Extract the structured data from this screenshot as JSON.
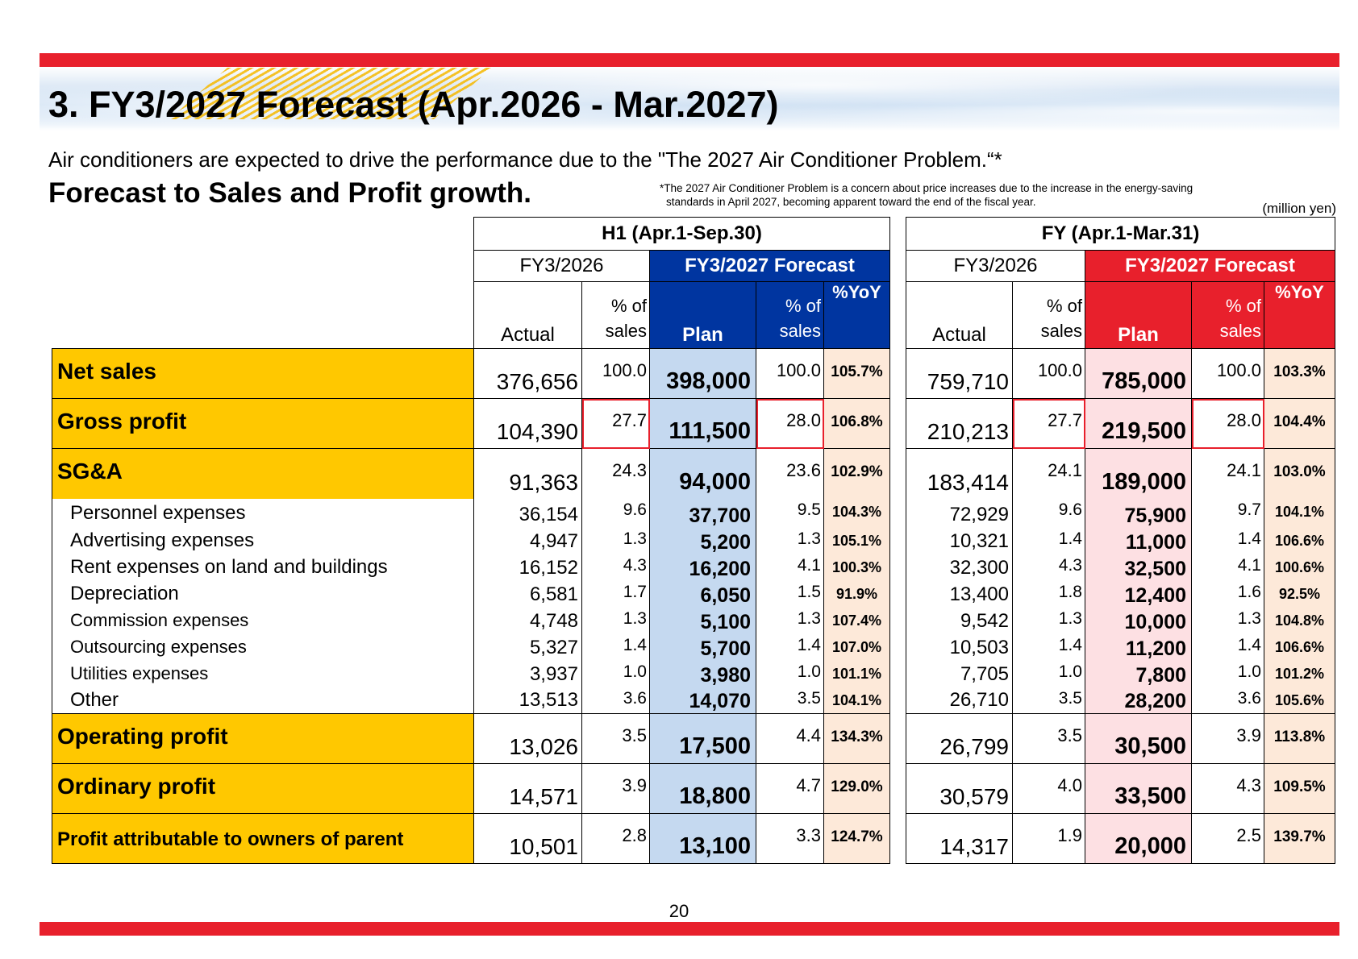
{
  "header": {
    "title": "3. FY3/2027 Forecast (Apr.2026 - Mar.2027)",
    "subtitle": "Air conditioners are expected to drive the performance due to the \"The 2027 Air Conditioner Problem.“*",
    "headline": "Forecast to Sales and Profit growth.",
    "footnote_line1": "*The 2027 Air Conditioner Problem is a concern about price increases due to the increase in the energy-saving",
    "footnote_line2": "standards in April 2027, becoming apparent toward the end of the fiscal year.",
    "unit": "(million yen)"
  },
  "table": {
    "h1_title": "H1 (Apr.1-Sep.30)",
    "fy_title": "FY (Apr.1-Mar.31)",
    "prior_year": "FY3/2026",
    "forecast_label": "FY3/2027 Forecast",
    "col_actual": "Actual",
    "col_pct_line1": "% of",
    "col_pct_line2": "sales",
    "col_plan": "Plan",
    "col_yoy": "%YoY",
    "rows": [
      {
        "label": "Net sales",
        "h1_actual": "376,656",
        "h1_actual_pct": "100.0",
        "h1_plan": "398,000",
        "h1_plan_pct": "100.0",
        "h1_yoy": "105.7%",
        "fy_actual": "759,710",
        "fy_actual_pct": "100.0",
        "fy_plan": "785,000",
        "fy_plan_pct": "100.0",
        "fy_yoy": "103.3%"
      },
      {
        "label": "Gross profit",
        "h1_actual": "104,390",
        "h1_actual_pct": "27.7",
        "h1_plan": "111,500",
        "h1_plan_pct": "28.0",
        "h1_yoy": "106.8%",
        "fy_actual": "210,213",
        "fy_actual_pct": "27.7",
        "fy_plan": "219,500",
        "fy_plan_pct": "28.0",
        "fy_yoy": "104.4%"
      },
      {
        "label": "SG&A",
        "h1_actual": "91,363",
        "h1_actual_pct": "24.3",
        "h1_plan": "94,000",
        "h1_plan_pct": "23.6",
        "h1_yoy": "102.9%",
        "fy_actual": "183,414",
        "fy_actual_pct": "24.1",
        "fy_plan": "189,000",
        "fy_plan_pct": "24.1",
        "fy_yoy": "103.0%"
      },
      {
        "label": "Personnel expenses",
        "h1_actual": "36,154",
        "h1_actual_pct": "9.6",
        "h1_plan": "37,700",
        "h1_plan_pct": "9.5",
        "h1_yoy": "104.3%",
        "fy_actual": "72,929",
        "fy_actual_pct": "9.6",
        "fy_plan": "75,900",
        "fy_plan_pct": "9.7",
        "fy_yoy": "104.1%"
      },
      {
        "label": "Advertising expenses",
        "h1_actual": "4,947",
        "h1_actual_pct": "1.3",
        "h1_plan": "5,200",
        "h1_plan_pct": "1.3",
        "h1_yoy": "105.1%",
        "fy_actual": "10,321",
        "fy_actual_pct": "1.4",
        "fy_plan": "11,000",
        "fy_plan_pct": "1.4",
        "fy_yoy": "106.6%"
      },
      {
        "label": "Rent expenses on land and buildings",
        "h1_actual": "16,152",
        "h1_actual_pct": "4.3",
        "h1_plan": "16,200",
        "h1_plan_pct": "4.1",
        "h1_yoy": "100.3%",
        "fy_actual": "32,300",
        "fy_actual_pct": "4.3",
        "fy_plan": "32,500",
        "fy_plan_pct": "4.1",
        "fy_yoy": "100.6%"
      },
      {
        "label": "Depreciation",
        "h1_actual": "6,581",
        "h1_actual_pct": "1.7",
        "h1_plan": "6,050",
        "h1_plan_pct": "1.5",
        "h1_yoy": "91.9%",
        "fy_actual": "13,400",
        "fy_actual_pct": "1.8",
        "fy_plan": "12,400",
        "fy_plan_pct": "1.6",
        "fy_yoy": "92.5%"
      },
      {
        "label": "Commission expenses",
        "h1_actual": "4,748",
        "h1_actual_pct": "1.3",
        "h1_plan": "5,100",
        "h1_plan_pct": "1.3",
        "h1_yoy": "107.4%",
        "fy_actual": "9,542",
        "fy_actual_pct": "1.3",
        "fy_plan": "10,000",
        "fy_plan_pct": "1.3",
        "fy_yoy": "104.8%"
      },
      {
        "label": "Outsourcing expenses",
        "h1_actual": "5,327",
        "h1_actual_pct": "1.4",
        "h1_plan": "5,700",
        "h1_plan_pct": "1.4",
        "h1_yoy": "107.0%",
        "fy_actual": "10,503",
        "fy_actual_pct": "1.4",
        "fy_plan": "11,200",
        "fy_plan_pct": "1.4",
        "fy_yoy": "106.6%"
      },
      {
        "label": "Utilities expenses",
        "h1_actual": "3,937",
        "h1_actual_pct": "1.0",
        "h1_plan": "3,980",
        "h1_plan_pct": "1.0",
        "h1_yoy": "101.1%",
        "fy_actual": "7,705",
        "fy_actual_pct": "1.0",
        "fy_plan": "7,800",
        "fy_plan_pct": "1.0",
        "fy_yoy": "101.2%"
      },
      {
        "label": "Other",
        "h1_actual": "13,513",
        "h1_actual_pct": "3.6",
        "h1_plan": "14,070",
        "h1_plan_pct": "3.5",
        "h1_yoy": "104.1%",
        "fy_actual": "26,710",
        "fy_actual_pct": "3.5",
        "fy_plan": "28,200",
        "fy_plan_pct": "3.6",
        "fy_yoy": "105.6%"
      },
      {
        "label": "Operating profit",
        "h1_actual": "13,026",
        "h1_actual_pct": "3.5",
        "h1_plan": "17,500",
        "h1_plan_pct": "4.4",
        "h1_yoy": "134.3%",
        "fy_actual": "26,799",
        "fy_actual_pct": "3.5",
        "fy_plan": "30,500",
        "fy_plan_pct": "3.9",
        "fy_yoy": "113.8%"
      },
      {
        "label": "Ordinary profit",
        "h1_actual": "14,571",
        "h1_actual_pct": "3.9",
        "h1_plan": "18,800",
        "h1_plan_pct": "4.7",
        "h1_yoy": "129.0%",
        "fy_actual": "30,579",
        "fy_actual_pct": "4.0",
        "fy_plan": "33,500",
        "fy_plan_pct": "4.3",
        "fy_yoy": "109.5%"
      },
      {
        "label": "Profit attributable to owners of parent",
        "h1_actual": "10,501",
        "h1_actual_pct": "2.8",
        "h1_plan": "13,100",
        "h1_plan_pct": "3.3",
        "h1_yoy": "124.7%",
        "fy_actual": "14,317",
        "fy_actual_pct": "1.9",
        "fy_plan": "20,000",
        "fy_plan_pct": "2.5",
        "fy_yoy": "139.7%"
      }
    ]
  },
  "footer": {
    "page_number": "20"
  },
  "colors": {
    "accent_red": "#e8202c",
    "forecast_blue": "#0035a0",
    "label_yellow": "#ffc800",
    "plan_blue_bg": "#c5d9f0",
    "plan_red_bg": "#fde0e3",
    "yoy_bg": "#fde9d9"
  }
}
